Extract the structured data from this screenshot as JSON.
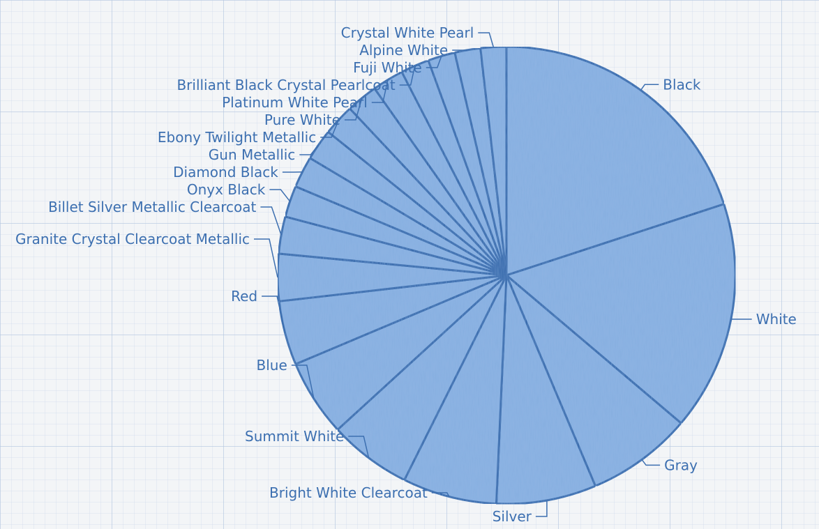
{
  "chart_data": {
    "type": "pie",
    "title": "",
    "start_angle_deg": 0,
    "direction": "clockwise",
    "fill_color": "#8fb4e3",
    "edge_color": "#2f64a8",
    "label_color": "#3c6fb0",
    "slices": [
      {
        "label": "Black",
        "value": 19.8
      },
      {
        "label": "White",
        "value": 16.1
      },
      {
        "label": "Gray",
        "value": 7.4
      },
      {
        "label": "Silver",
        "value": 7.0
      },
      {
        "label": "Bright White Clearcoat",
        "value": 6.6
      },
      {
        "label": "Summit White",
        "value": 5.8
      },
      {
        "label": "Blue",
        "value": 5.4
      },
      {
        "label": "Red",
        "value": 4.5
      },
      {
        "label": "Granite Crystal Clearcoat Metallic",
        "value": 3.3
      },
      {
        "label": "Billet Silver Metallic Clearcoat",
        "value": 2.6
      },
      {
        "label": "Onyx Black",
        "value": 2.2
      },
      {
        "label": "Diamond Black",
        "value": 2.2
      },
      {
        "label": "Gun Metallic",
        "value": 2.2
      },
      {
        "label": "Ebony Twilight Metallic",
        "value": 2.2
      },
      {
        "label": "Pure White",
        "value": 2.2
      },
      {
        "label": "Platinum White Pearl",
        "value": 2.2
      },
      {
        "label": "Brilliant Black Crystal Pearlcoat",
        "value": 2.0
      },
      {
        "label": "Fuji White",
        "value": 1.9
      },
      {
        "label": "Alpine White",
        "value": 1.8
      },
      {
        "label": "Crystal White Pearl",
        "value": 1.8
      }
    ]
  }
}
